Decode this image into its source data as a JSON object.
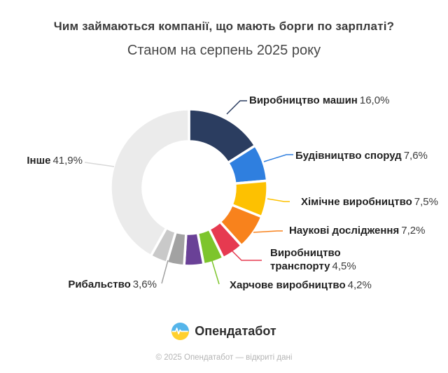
{
  "header": {
    "title": "Чим займаються компанії, що мають борги по зарплаті?",
    "subtitle": "Станом на серпень 2025 року"
  },
  "chart_data": {
    "type": "pie",
    "subtype": "donut",
    "title": "Чим займаються компанії, що мають борги по зарплаті?",
    "subtitle": "Станом на серпень 2025 року",
    "unit": "%",
    "start_angle_deg": 0,
    "direction": "clockwise",
    "segments": [
      {
        "label": "Виробництво машин",
        "value": 16.0,
        "pct_label": "16,0%",
        "color": "#2b3d60"
      },
      {
        "label": "Будівництво споруд",
        "value": 7.6,
        "pct_label": "7,6%",
        "color": "#2f7fdf"
      },
      {
        "label": "Хімічне виробництво",
        "value": 7.5,
        "pct_label": "7,5%",
        "color": "#fdc101"
      },
      {
        "label": "Наукові дослідження",
        "value": 7.2,
        "pct_label": "7,2%",
        "color": "#f8821c"
      },
      {
        "label": "Виробництво транспорту",
        "value": 4.5,
        "pct_label": "4,5%",
        "color": "#e63a50"
      },
      {
        "label": "Харчове виробництво",
        "value": 4.2,
        "pct_label": "4,2%",
        "color": "#7dc52c"
      },
      {
        "label": "",
        "value": 4.0,
        "pct_label": "",
        "color": "#6a4197"
      },
      {
        "label": "Рибальство",
        "value": 3.6,
        "pct_label": "3,6%",
        "color": "#a2a2a2"
      },
      {
        "label": "",
        "value": 3.5,
        "pct_label": "",
        "color": "#c9c9c9"
      },
      {
        "label": "Інше",
        "value": 41.9,
        "pct_label": "41,9%",
        "color": "#ebebeb",
        "leader_color": "#d8d8d8"
      }
    ]
  },
  "footer": {
    "brand": "Опендатабот",
    "copyright": "© 2025 Опендатабот — відкриті дані",
    "logo": {
      "icon": "opendatabot-logo",
      "blue": "#55b5ea",
      "yellow": "#ffd02e",
      "pulse": "#ffffff"
    }
  }
}
